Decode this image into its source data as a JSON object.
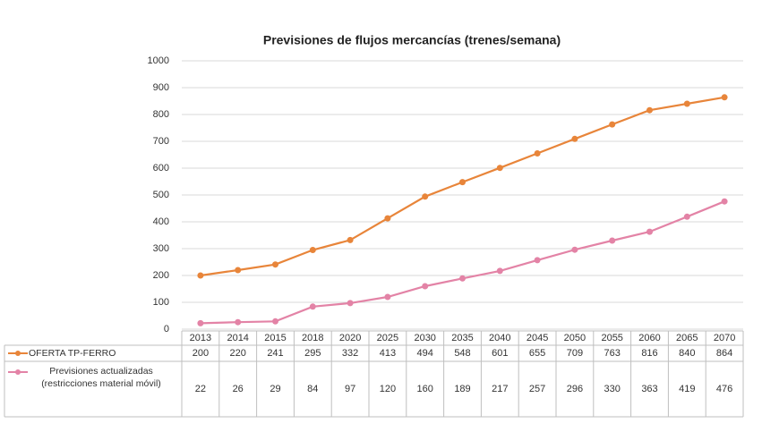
{
  "chart_data": {
    "type": "line",
    "title": "Previsiones de  flujos mercancías (trenes/semana)",
    "categories": [
      "2013",
      "2014",
      "2015",
      "2018",
      "2020",
      "2025",
      "2030",
      "2035",
      "2040",
      "2045",
      "2050",
      "2055",
      "2060",
      "2065",
      "2070"
    ],
    "series": [
      {
        "name": "OFERTA TP-FERRO",
        "color": "#e8853a",
        "values": [
          200,
          220,
          241,
          295,
          332,
          413,
          494,
          548,
          601,
          655,
          709,
          763,
          816,
          840,
          864
        ]
      },
      {
        "name": "Previsiones actualizadas (restricciones material móvil)",
        "color": "#e383a6",
        "values": [
          22,
          26,
          29,
          84,
          97,
          120,
          160,
          189,
          217,
          257,
          296,
          330,
          363,
          419,
          476
        ]
      }
    ],
    "ylim": [
      0,
      1000
    ],
    "yticks": [
      0,
      100,
      200,
      300,
      400,
      500,
      600,
      700,
      800,
      900,
      1000
    ],
    "grid": true
  }
}
